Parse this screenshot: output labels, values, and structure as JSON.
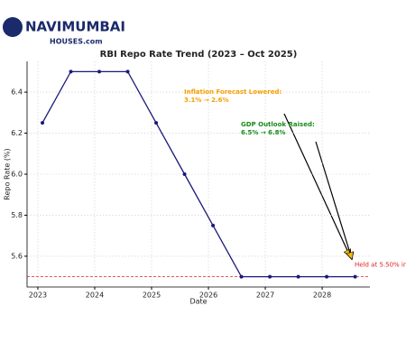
{
  "logo": {
    "brand": "NAVIMUMBAI",
    "sub": "HOUSES.com"
  },
  "chart_data": {
    "type": "line",
    "title": "RBI Repo Rate Trend (2023 – Oct 2025)",
    "x_label": "Date",
    "y_label": "Repo Rate (%)",
    "x": [
      2023.08,
      2023.58,
      2024.08,
      2024.58,
      2025.08,
      2025.58,
      2026.08,
      2026.58,
      2027.08,
      2027.58,
      2028.08,
      2028.58
    ],
    "series": [
      {
        "name": "Repo Rate",
        "color": "#1a1a7a",
        "values": [
          6.25,
          6.5,
          6.5,
          6.5,
          6.25,
          6.0,
          5.75,
          5.5,
          5.5,
          5.5,
          5.5,
          5.5
        ]
      }
    ],
    "xlim": [
      2022.81,
      2028.84
    ],
    "xticks": [
      2023,
      2024,
      2025,
      2026,
      2027,
      2028
    ],
    "ylim": [
      5.45,
      6.55
    ],
    "yticks": [
      5.6,
      5.8,
      {
        "value": 6,
        "label": "6.0"
      },
      6.2,
      6.4
    ],
    "grid": true,
    "reference_line": {
      "value": 5.5,
      "color": "#e02020",
      "label": "Held at 5.50% in"
    },
    "annotations": [
      {
        "lines": [
          "Inflation Forecast Lowered:",
          "3.1% → 2.6%"
        ],
        "color": "#f5a000"
      },
      {
        "lines": [
          "GDP Outlook Raised:",
          "6.5% → 6.8%"
        ],
        "color": "#1a8a1a"
      }
    ]
  }
}
